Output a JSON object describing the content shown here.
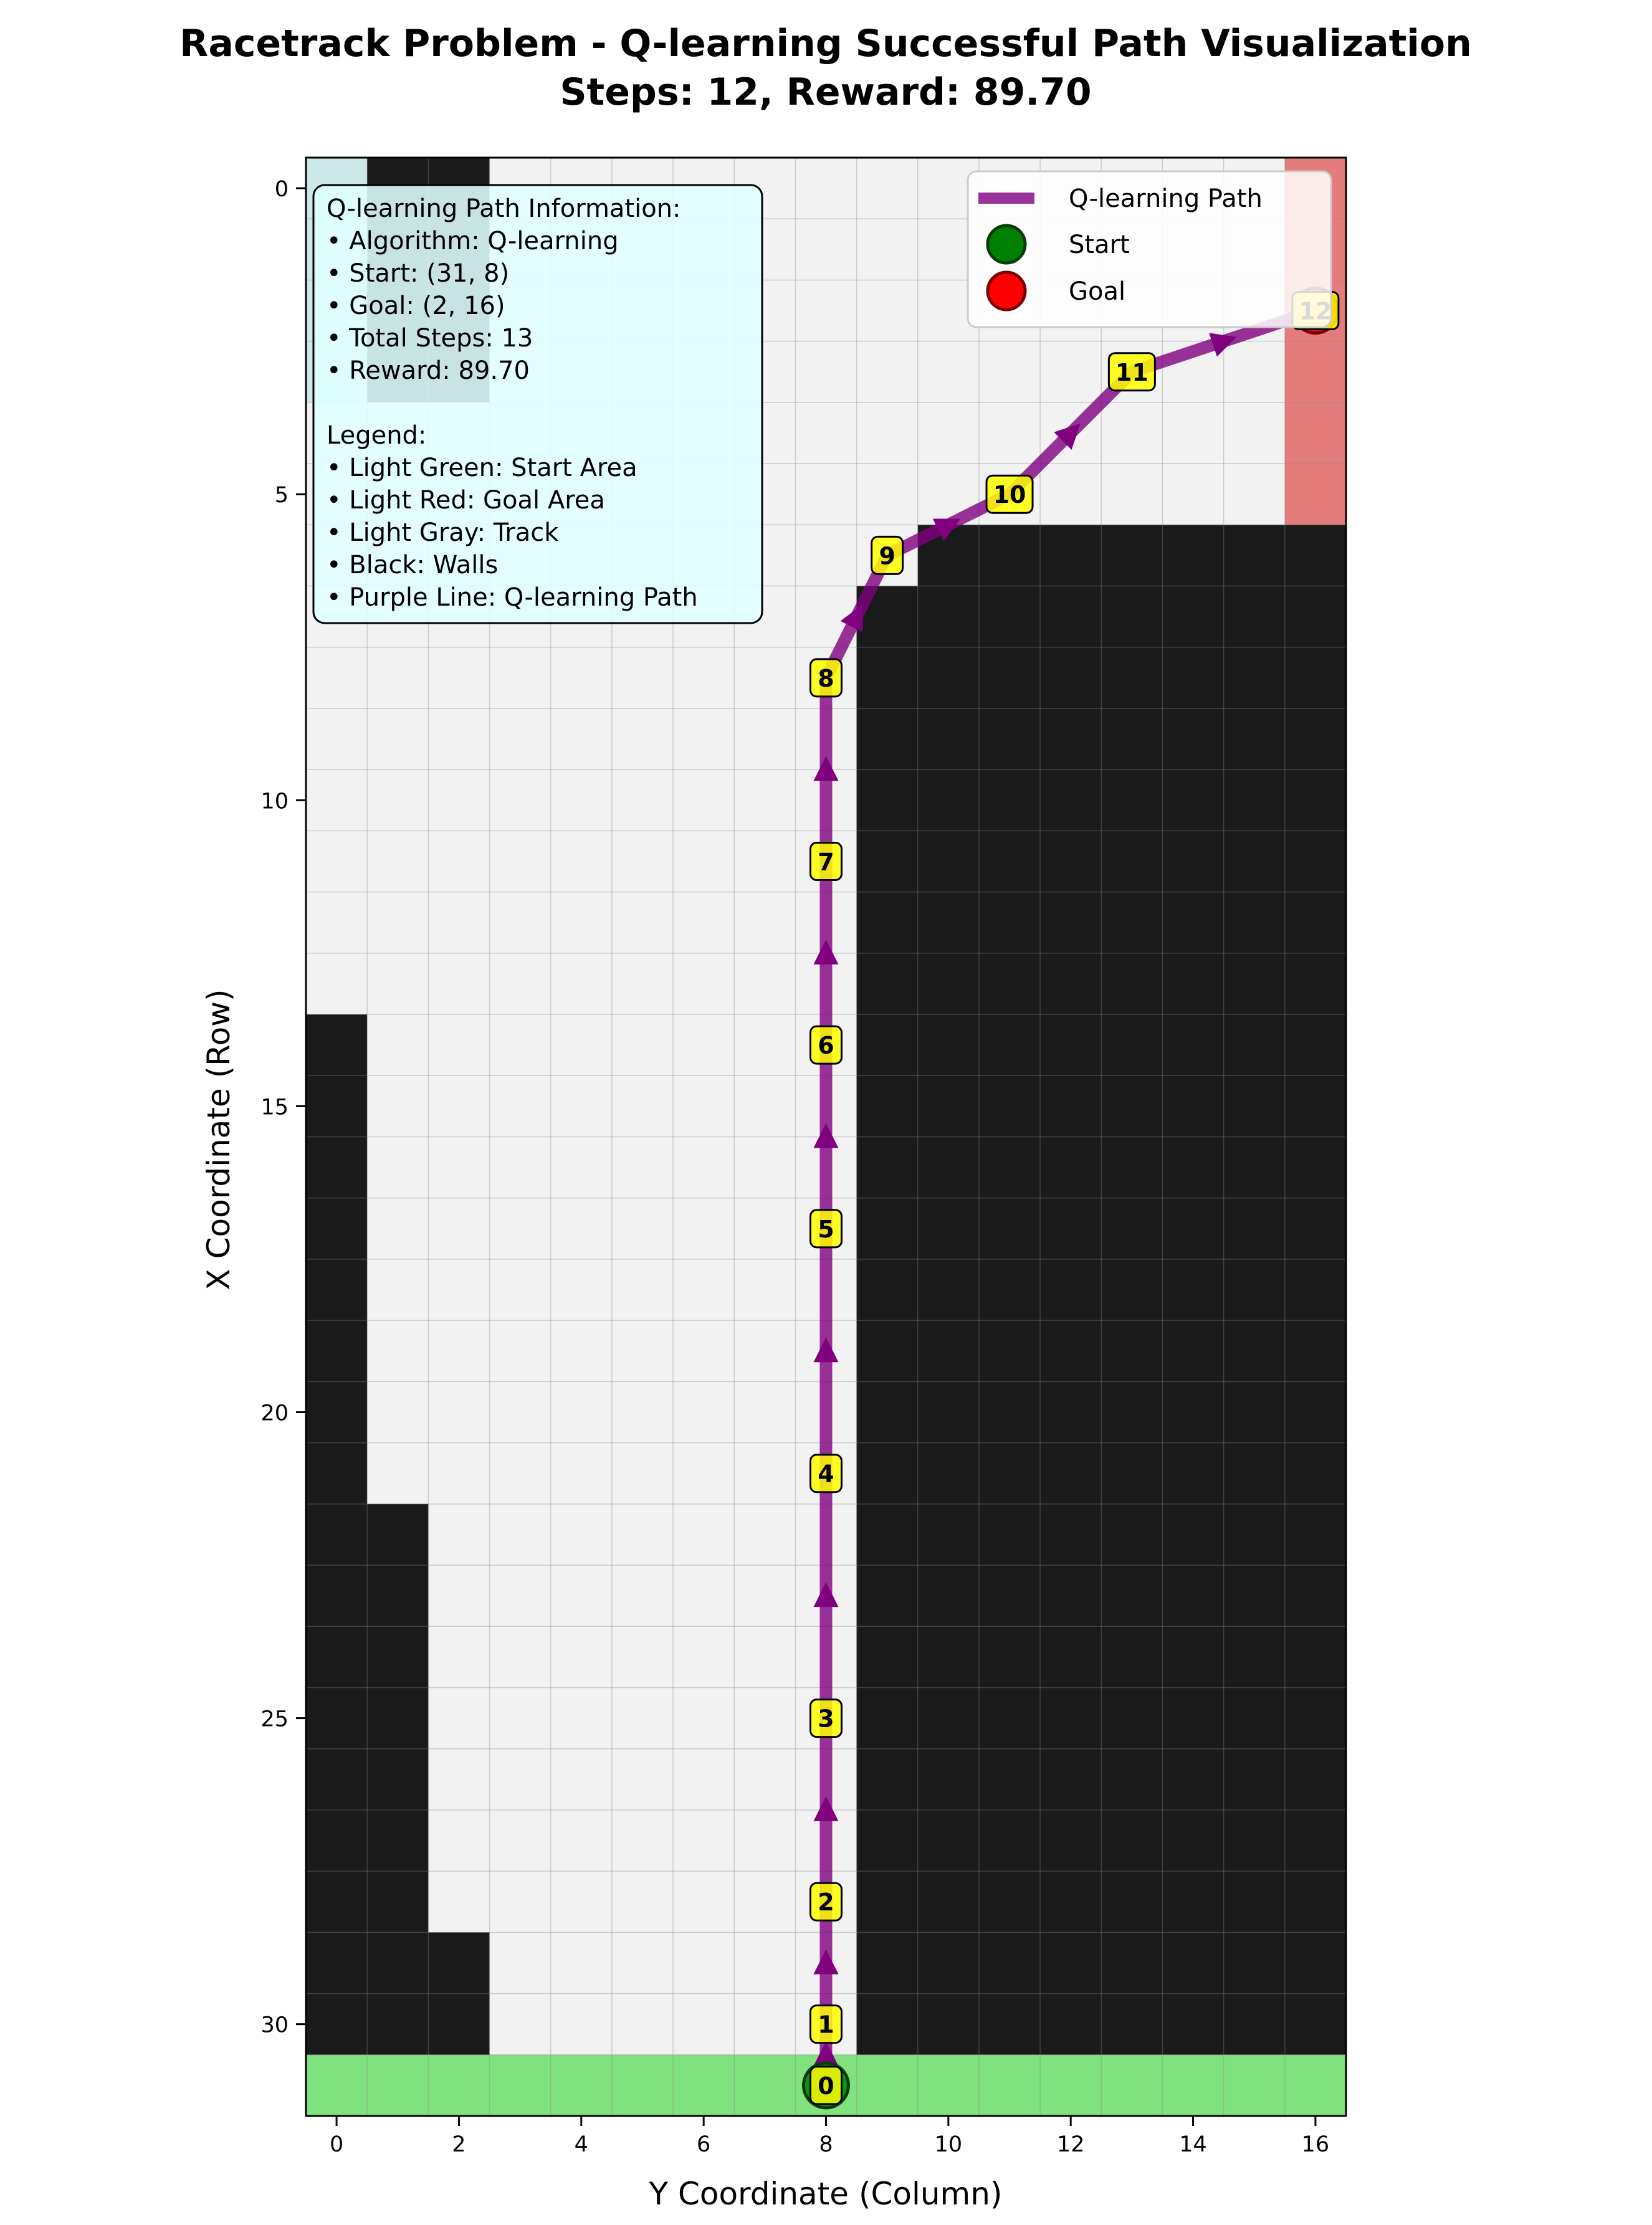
{
  "figure": {
    "title_line1": "Racetrack Problem - Q-learning Successful Path Visualization",
    "title_line2": "Steps: 12, Reward: 89.70"
  },
  "chart_data": {
    "type": "heatmap",
    "xlabel": "Y Coordinate (Column)",
    "ylabel": "X Coordinate (Row)",
    "xlim": [
      -0.5,
      16.5
    ],
    "ylim": [
      31.5,
      -0.5
    ],
    "x_ticks": [
      0,
      2,
      4,
      6,
      8,
      10,
      12,
      14,
      16
    ],
    "y_ticks": [
      0,
      5,
      10,
      15,
      20,
      25,
      30
    ],
    "grid": true,
    "grid_rows": 32,
    "grid_cols": 17,
    "cell_types": {
      "track": {
        "label": "Light Gray: Track",
        "color": "#f2f2f2"
      },
      "wall": {
        "label": "Black: Walls",
        "color": "#1a1a1a"
      },
      "start": {
        "label": "Light Green: Start Area",
        "color": "#80e27e"
      },
      "goal": {
        "label": "Light Red: Goal Area",
        "color": "#e57c7c"
      }
    },
    "walls": [
      {
        "rows": [
          0,
          3
        ],
        "cols": [
          0,
          2
        ]
      },
      {
        "rows": [
          14,
          30
        ],
        "cols": [
          0,
          0
        ]
      },
      {
        "rows": [
          22,
          30
        ],
        "cols": [
          1,
          1
        ]
      },
      {
        "rows": [
          29,
          30
        ],
        "cols": [
          2,
          2
        ]
      },
      {
        "rows": [
          6,
          6
        ],
        "cols": [
          10,
          16
        ]
      },
      {
        "rows": [
          7,
          7
        ],
        "cols": [
          9,
          16
        ]
      },
      {
        "rows": [
          8,
          30
        ],
        "cols": [
          9,
          16
        ]
      }
    ],
    "start_area": {
      "rows": [
        31,
        31
      ],
      "cols": [
        0,
        16
      ]
    },
    "goal_area": {
      "rows": [
        0,
        5
      ],
      "cols": [
        16,
        16
      ]
    },
    "info_overlay": {
      "rows": [
        0,
        3
      ],
      "cols": [
        0,
        0
      ],
      "color": "#cde8e8"
    },
    "path_series": {
      "name": "Q-learning Path",
      "color": "#800080",
      "points": [
        {
          "step": 0,
          "row": 31,
          "col": 8
        },
        {
          "step": 1,
          "row": 30,
          "col": 8
        },
        {
          "step": 2,
          "row": 28,
          "col": 8
        },
        {
          "step": 3,
          "row": 25,
          "col": 8
        },
        {
          "step": 4,
          "row": 21,
          "col": 8
        },
        {
          "step": 5,
          "row": 17,
          "col": 8
        },
        {
          "step": 6,
          "row": 14,
          "col": 8
        },
        {
          "step": 7,
          "row": 11,
          "col": 8
        },
        {
          "step": 8,
          "row": 8,
          "col": 8
        },
        {
          "step": 9,
          "row": 6,
          "col": 9
        },
        {
          "step": 10,
          "row": 5,
          "col": 11
        },
        {
          "step": 11,
          "row": 3,
          "col": 13
        },
        {
          "step": 12,
          "row": 2,
          "col": 16
        }
      ]
    },
    "start_marker": {
      "name": "Start",
      "row": 31,
      "col": 8,
      "color": "#008000"
    },
    "goal_marker": {
      "name": "Goal",
      "row": 2,
      "col": 16,
      "color": "#ff0000"
    },
    "legend": {
      "placement": "top-right",
      "entries": [
        "Q-learning Path",
        "Start",
        "Goal"
      ]
    },
    "info_box": {
      "placement": "top-left",
      "lines": [
        "Q-learning Path Information:",
        "• Algorithm: Q-learning",
        "• Start: (31, 8)",
        "• Goal: (2, 16)",
        "• Total Steps: 13",
        "• Reward: 89.70",
        "",
        "Legend:",
        "• Light Green: Start Area",
        "• Light Red: Goal Area",
        "• Light Gray: Track",
        "• Black: Walls",
        "• Purple Line: Q-learning Path"
      ]
    }
  }
}
